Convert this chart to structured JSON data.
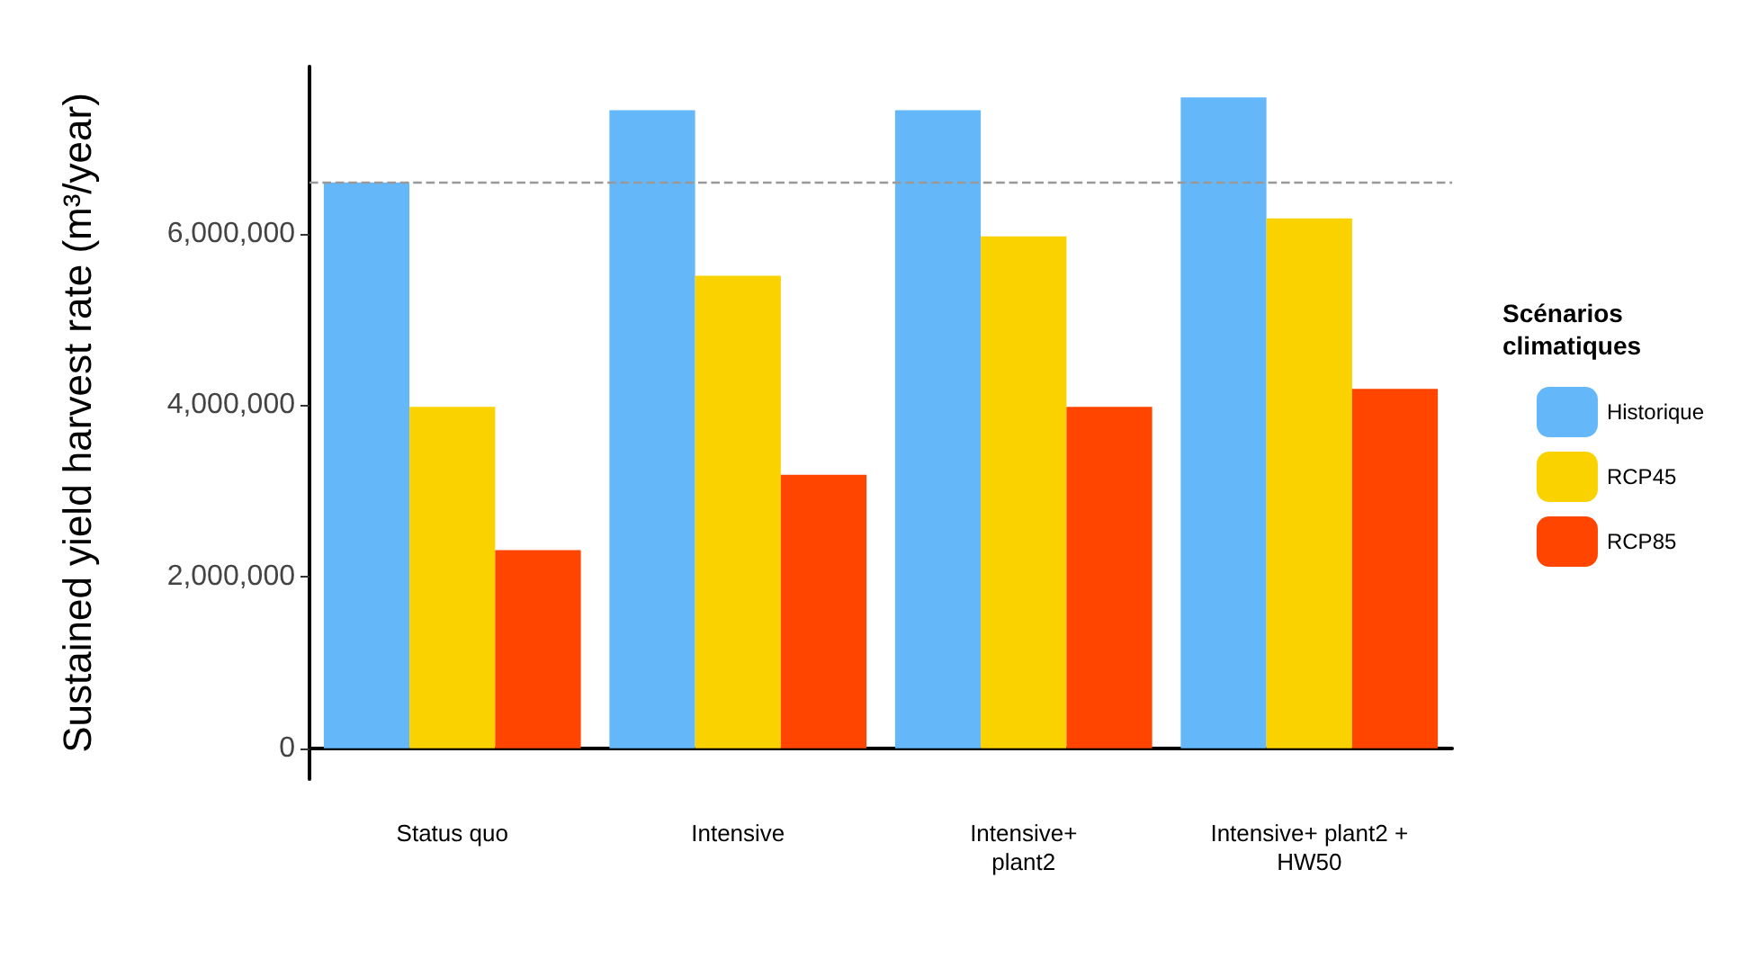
{
  "chart_data": {
    "type": "bar",
    "ylabel": "Sustained yield harvest rate (m³/year)",
    "legend_title": "Scénarios\nclimatiques",
    "categories": [
      "Status quo",
      "Intensive",
      "Intensive+\nplant2",
      "Intensive+ plant2 +\nHW50"
    ],
    "series": [
      {
        "name": "Historique",
        "color": "#64b8fa",
        "values": [
          6600000,
          7440000,
          7440000,
          7590000
        ]
      },
      {
        "name": "RCP45",
        "color": "#fad200",
        "values": [
          3980000,
          5510000,
          5970000,
          6180000
        ]
      },
      {
        "name": "RCP85",
        "color": "#ff4500",
        "values": [
          2310000,
          3190000,
          3980000,
          4190000
        ]
      }
    ],
    "ylim": [
      -360000,
      7950000
    ],
    "yticks": [
      0,
      {
        "value": 2000000,
        "label": "2,000,000"
      },
      {
        "value": 4000000,
        "label": "4,000,000"
      },
      {
        "value": 6000000,
        "label": "6,000,000"
      }
    ],
    "ref_lines": [
      {
        "axis": "y",
        "value": 6600000,
        "color": "#999999",
        "line_style": "dashed"
      }
    ],
    "legend": "right"
  }
}
